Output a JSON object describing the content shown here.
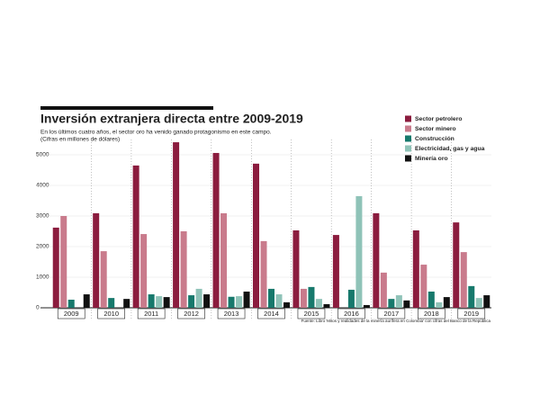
{
  "chart_data": {
    "type": "bar",
    "title": "Inversión extranjera directa entre 2009-2019",
    "subtitle": "En los últimos cuatro años, el sector oro ha venido ganado protagonismo en este campo.",
    "note": "(Cifras en millones de dólares)",
    "source": "Fuente: Libro 'Mitos y realidades de la minería aurífera en Colombia' con cifras del Banco de la República",
    "categories": [
      "2009",
      "2010",
      "2011",
      "2012",
      "2013",
      "2014",
      "2015",
      "2016",
      "2017",
      "2018",
      "2019"
    ],
    "series": [
      {
        "name": "Sector petrolero",
        "color": "#8b1c3e",
        "values": [
          2620,
          3090,
          4650,
          5410,
          5060,
          4710,
          2530,
          2380,
          3090,
          2530,
          2790
        ]
      },
      {
        "name": "Sector minero",
        "color": "#c97b8c",
        "values": [
          3000,
          1850,
          2410,
          2500,
          3090,
          2180,
          620,
          0,
          1150,
          1410,
          1820
        ]
      },
      {
        "name": "Construcción",
        "color": "#17796c",
        "values": [
          265,
          320,
          440,
          410,
          360,
          620,
          680,
          590,
          290,
          530,
          710
        ]
      },
      {
        "name": "Electricidad, gas y agua",
        "color": "#8fc3b8",
        "values": [
          0,
          0,
          380,
          620,
          380,
          440,
          290,
          3650,
          410,
          180,
          320
        ]
      },
      {
        "name": "Minería oro",
        "color": "#111111",
        "values": [
          440,
          290,
          350,
          440,
          530,
          180,
          120,
          90,
          240,
          350,
          410
        ]
      }
    ],
    "ylim": [
      0,
      5500
    ],
    "yticks": [
      0,
      1000,
      2000,
      3000,
      4000,
      5000
    ],
    "grid": true,
    "legend": "top-right"
  }
}
